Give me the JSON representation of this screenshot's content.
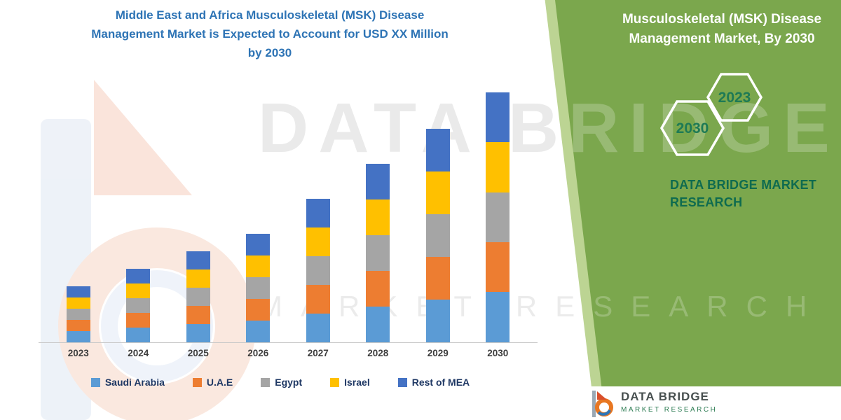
{
  "header": {
    "lines": [
      "Middle East and Africa Musculoskeletal (MSK) Disease",
      "Management Market is Expected to Account for USD XX Million",
      "by 2030"
    ]
  },
  "panel": {
    "title_lines": [
      "Musculoskeletal (MSK) Disease",
      "Management Market, By 2030"
    ],
    "hexagon_years": [
      "2023",
      "2030"
    ],
    "brand": "DATA BRIDGE MARKET RESEARCH",
    "background_color": "#7BA74D",
    "brand_text_color": "#0E6B4F",
    "hexagon_year_color": "#1E7A55"
  },
  "watermark": {
    "line1": "DATA BRIDGE",
    "line2": "MARKET RESEARCH"
  },
  "footer": {
    "brand": "DATA BRIDGE",
    "sub": "MARKET RESEARCH"
  },
  "chart_data": {
    "type": "bar",
    "stacked": true,
    "title": "Middle East and Africa Musculoskeletal (MSK) Disease Management Market is Expected to Account for USD XX Million by 2030",
    "xlabel": "",
    "ylabel": "",
    "value_axis_visible": false,
    "units": "relative index (y-axis unlabeled; market value shown as USD XX Million)",
    "legend_position": "bottom",
    "ylim": [
      0,
      380
    ],
    "categories": [
      "2023",
      "2024",
      "2025",
      "2026",
      "2027",
      "2028",
      "2029",
      "2030"
    ],
    "series": [
      {
        "name": "Saudi Arabia",
        "color": "#5B9BD5",
        "values": [
          16,
          21,
          26,
          31,
          41,
          51,
          61,
          72
        ]
      },
      {
        "name": "U.A.E",
        "color": "#ED7D31",
        "values": [
          16,
          21,
          26,
          31,
          41,
          51,
          61,
          71
        ]
      },
      {
        "name": "Egypt",
        "color": "#A5A5A5",
        "values": [
          16,
          21,
          26,
          31,
          41,
          51,
          61,
          71
        ]
      },
      {
        "name": "Israel",
        "color": "#FFC000",
        "values": [
          16,
          21,
          26,
          31,
          41,
          51,
          61,
          72
        ]
      },
      {
        "name": "Rest of MEA",
        "color": "#4472C4",
        "values": [
          16,
          21,
          26,
          31,
          41,
          51,
          61,
          71
        ]
      }
    ]
  }
}
